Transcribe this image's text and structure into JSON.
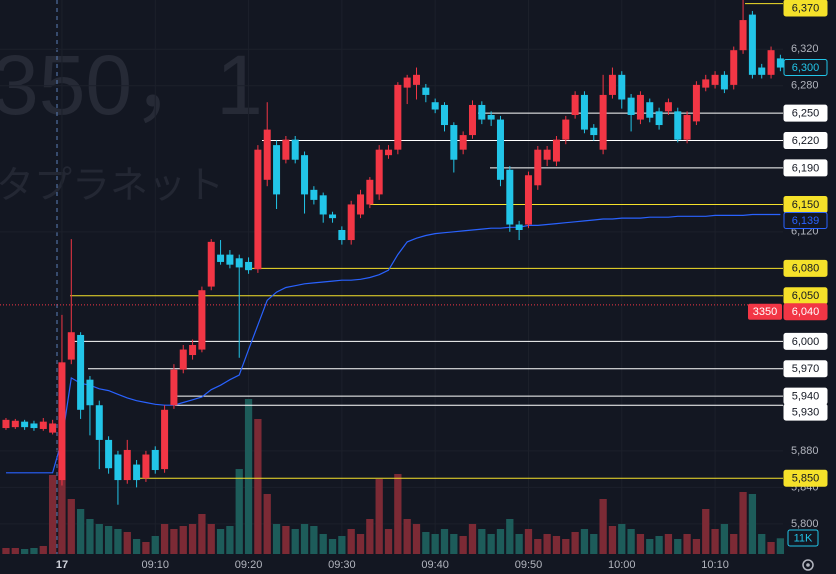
{
  "chart_data": {
    "type": "candlestick",
    "watermark": [
      "350，1",
      "タプラネット"
    ],
    "x": [
      -6,
      -5,
      -4,
      -3,
      -2,
      -1,
      0,
      1,
      2,
      3,
      4,
      5,
      6,
      7,
      8,
      9,
      10,
      11,
      12,
      13,
      14,
      15,
      16,
      17,
      18,
      19,
      20,
      21,
      22,
      23,
      24,
      25,
      26,
      27,
      28,
      29,
      30,
      31,
      32,
      33,
      34,
      35,
      36,
      37,
      38,
      39,
      40,
      41,
      42,
      43,
      44,
      45,
      46,
      47,
      48,
      49,
      50,
      51,
      52,
      53,
      54,
      55,
      56,
      57,
      58,
      59,
      60,
      61,
      62,
      63,
      64,
      65,
      66,
      67,
      68,
      69,
      70,
      71,
      72,
      73,
      74,
      75,
      76,
      77
    ],
    "open": [
      5905,
      5906,
      5912,
      5910,
      5904,
      5900,
      5848,
      5980,
      6007,
      5958,
      5930,
      5892,
      5876,
      5848,
      5865,
      5850,
      5881,
      5860,
      5930,
      5969,
      5985,
      5991,
      6060,
      6095,
      6095,
      6091,
      6087,
      6079,
      6177,
      6215,
      6199,
      6221,
      6204,
      6166,
      6160,
      6139,
      6122,
      6111,
      6139,
      6150,
      6161,
      6204,
      6210,
      6278,
      6281,
      6278,
      6262,
      6259,
      6237,
      6210,
      6226,
      6259,
      6248,
      6243,
      6188,
      6128,
      6128,
      6171,
      6199,
      6197,
      6221,
      6248,
      6270,
      6234,
      6210,
      6270,
      6292,
      6267,
      6243,
      6262,
      6252,
      6252,
      6252,
      6221,
      6241,
      6278,
      6281,
      6292,
      6281,
      6319,
      6358,
      6300,
      6292,
      6310
    ],
    "high": [
      5916,
      5915,
      5914,
      5913,
      5916,
      5914,
      6029,
      6112,
      6010,
      5962,
      5935,
      5896,
      5880,
      5892,
      5870,
      5880,
      5885,
      5930,
      5975,
      5996,
      6002,
      6060,
      6112,
      6111,
      6100,
      6095,
      6092,
      6215,
      6262,
      6220,
      6225,
      6225,
      6208,
      6170,
      6163,
      6142,
      6126,
      6154,
      6166,
      6180,
      6215,
      6215,
      6284,
      6292,
      6300,
      6282,
      6266,
      6262,
      6240,
      6230,
      6264,
      6263,
      6252,
      6247,
      6192,
      6132,
      6186,
      6214,
      6214,
      6225,
      6247,
      6274,
      6274,
      6238,
      6292,
      6300,
      6296,
      6271,
      6274,
      6266,
      6256,
      6266,
      6256,
      6252,
      6285,
      6292,
      6296,
      6296,
      6323,
      6374,
      6362,
      6304,
      6323,
      6314
    ],
    "low": [
      5903,
      5904,
      5903,
      5902,
      5902,
      5898,
      5842,
      5975,
      5915,
      5897,
      5860,
      5855,
      5821,
      5844,
      5840,
      5846,
      5855,
      5856,
      5926,
      5965,
      5980,
      5988,
      6056,
      6084,
      6080,
      5982,
      6074,
      6075,
      6170,
      6145,
      6195,
      6195,
      6140,
      6150,
      6130,
      6130,
      6106,
      6106,
      6135,
      6146,
      6155,
      6200,
      6205,
      6260,
      6265,
      6262,
      6250,
      6230,
      6185,
      6205,
      6222,
      6238,
      6236,
      6170,
      6120,
      6111,
      6124,
      6166,
      6192,
      6192,
      6216,
      6244,
      6228,
      6220,
      6205,
      6266,
      6255,
      6230,
      6238,
      6240,
      6232,
      6248,
      6218,
      6217,
      6237,
      6274,
      6277,
      6272,
      6276,
      6315,
      6288,
      6288,
      6288,
      6296
    ],
    "close": [
      5914,
      5913,
      5906,
      5905,
      5912,
      5910,
      5977,
      6010,
      5925,
      5930,
      5892,
      5861,
      5848,
      5881,
      5848,
      5876,
      5859,
      5925,
      5969,
      5991,
      5996,
      6056,
      6109,
      6087,
      6084,
      6081,
      6078,
      6210,
      6232,
      6161,
      6221,
      6199,
      6161,
      6155,
      6139,
      6135,
      6111,
      6150,
      6161,
      6177,
      6210,
      6210,
      6281,
      6289,
      6292,
      6270,
      6254,
      6237,
      6199,
      6226,
      6259,
      6243,
      6243,
      6177,
      6128,
      6122,
      6182,
      6210,
      6210,
      6221,
      6243,
      6270,
      6232,
      6226,
      6270,
      6292,
      6265,
      6248,
      6270,
      6245,
      6237,
      6262,
      6221,
      6248,
      6281,
      6287,
      6292,
      6276,
      6319,
      6352,
      6292,
      6292,
      6319,
      6300
    ],
    "volume": {
      "values": [
        4200,
        4200,
        3500,
        4200,
        5600,
        55300,
        58800,
        38500,
        31500,
        24500,
        21000,
        19600,
        17500,
        15400,
        10500,
        8400,
        12600,
        21000,
        17500,
        19600,
        21000,
        28000,
        21000,
        17500,
        19600,
        59500,
        108500,
        94500,
        42000,
        21000,
        19600,
        17500,
        21000,
        19600,
        14000,
        10500,
        12600,
        17500,
        14000,
        24500,
        52500,
        17500,
        56000,
        24500,
        21000,
        15400,
        14000,
        17500,
        14000,
        12600,
        21000,
        17500,
        14000,
        17500,
        24500,
        14000,
        17500,
        10500,
        14000,
        12600,
        10500,
        15400,
        17500,
        14000,
        38500,
        19600,
        21000,
        17500,
        14000,
        10500,
        12600,
        14000,
        10500,
        14000,
        10500,
        31500,
        17500,
        21000,
        14000,
        43400,
        42000,
        14000,
        8400,
        11000
      ],
      "value_labels": [
        null,
        null,
        null,
        null,
        null,
        null,
        null,
        null,
        null,
        null,
        null,
        null,
        null,
        null,
        null,
        null,
        null,
        null,
        null,
        null,
        null,
        null,
        null,
        null,
        null,
        null,
        null,
        null,
        null,
        null,
        null,
        null,
        null,
        null,
        null,
        null,
        null,
        null,
        null,
        null,
        null,
        null,
        null,
        null,
        null,
        null,
        null,
        null,
        null,
        null,
        null,
        null,
        null,
        null,
        null,
        null,
        null,
        null,
        null,
        null,
        null,
        null,
        null,
        null,
        null,
        null,
        null,
        null,
        null,
        null,
        null,
        null,
        null,
        null,
        null,
        null,
        null,
        null,
        null,
        null,
        null,
        null,
        null,
        "11K"
      ]
    },
    "vwap": {
      "color": "#2962ff",
      "values": [
        5856,
        5856,
        5856,
        5856,
        5856,
        5856,
        5892,
        5960,
        5954,
        5952,
        5948,
        5946,
        5942,
        5938,
        5935,
        5933,
        5931,
        5930,
        5930,
        5933,
        5936,
        5939,
        5947,
        5952,
        5958,
        5963,
        5991,
        6018,
        6045,
        6054,
        6059,
        6061,
        6063,
        6064,
        6065,
        6066,
        6067,
        6067,
        6068,
        6070,
        6073,
        6078,
        6095,
        6109,
        6113,
        6116,
        6118,
        6119,
        6120,
        6121,
        6122,
        6123,
        6124,
        6124,
        6125,
        6125,
        6127,
        6127,
        6128,
        6129,
        6130,
        6131,
        6132,
        6133,
        6134,
        6134,
        6135,
        6135,
        6135,
        6136,
        6136,
        6136,
        6137,
        6137,
        6137,
        6137,
        6138,
        6138,
        6138,
        6138,
        6139,
        6139,
        6139,
        6139
      ]
    },
    "up_color": "#f23645",
    "down_color": "#22c5e8",
    "xlim": [
      -6.64,
      77.28
    ],
    "ylim": [
      5767,
      6374
    ],
    "xticks": [
      {
        "value": 0,
        "label": "17"
      },
      {
        "value": 10,
        "label": "09:10"
      },
      {
        "value": 20,
        "label": "09:20"
      },
      {
        "value": 30,
        "label": "09:30"
      },
      {
        "value": 40,
        "label": "09:40"
      },
      {
        "value": 50,
        "label": "09:50"
      },
      {
        "value": 60,
        "label": "10:00"
      },
      {
        "value": 70,
        "label": "10:10"
      }
    ],
    "yticks": [
      {
        "value": 6320,
        "label": "6,320"
      },
      {
        "value": 6280,
        "label": "6,280"
      },
      {
        "value": 6120,
        "label": "6,120"
      },
      {
        "value": 5880,
        "label": "5,880"
      },
      {
        "value": 5840,
        "label": "5,840"
      },
      {
        "value": 5800,
        "label": "5,800"
      }
    ],
    "grid": true,
    "levels": [
      {
        "value": 6370,
        "label": "6,370",
        "color": "#f5e12a"
      },
      {
        "value": 6250,
        "label": "6,250",
        "color": "#ffffff"
      },
      {
        "value": 6220,
        "label": "6,220",
        "color": "#ffffff"
      },
      {
        "value": 6190,
        "label": "6,190",
        "color": "#ffffff"
      },
      {
        "value": 6150,
        "label": "6,150",
        "color": "#f5e12a"
      },
      {
        "value": 6080,
        "label": "6,080",
        "color": "#f5e12a"
      },
      {
        "value": 6050,
        "label": "6,050",
        "color": "#f5e12a"
      },
      {
        "value": 6000,
        "label": "6,000",
        "color": "#ffffff"
      },
      {
        "value": 5970,
        "label": "5,970",
        "color": "#ffffff"
      },
      {
        "value": 5940,
        "label": "5,940",
        "color": "#ffffff"
      },
      {
        "value": 5930,
        "label": "5,930",
        "color": "#ffffff"
      },
      {
        "value": 5850,
        "label": "5,850",
        "color": "#f5e12a"
      }
    ],
    "price_labels": [
      {
        "value": 6300,
        "label": "6,300",
        "color": "#22c5e8",
        "style": "outline"
      },
      {
        "value": 6139,
        "label": "6,139",
        "color": "#2962ff",
        "style": "outline"
      },
      {
        "value": 6040,
        "label": "6,040",
        "color": "#f23645",
        "style": "filled",
        "tag": "3350"
      }
    ]
  }
}
